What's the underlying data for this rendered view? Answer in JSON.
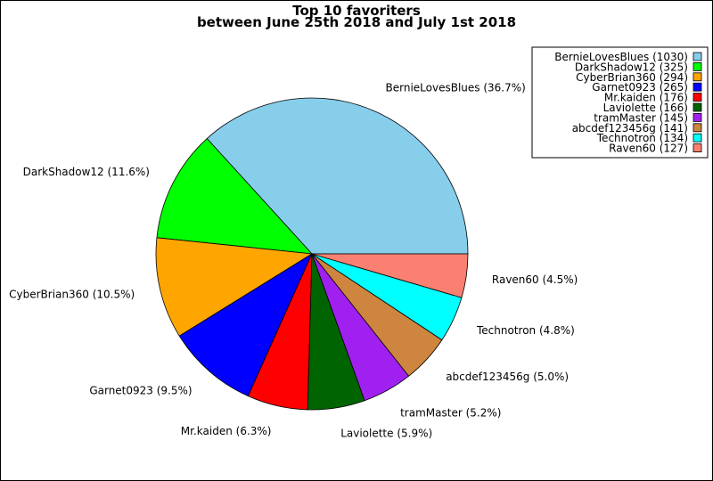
{
  "chart_data": {
    "type": "pie",
    "title": "Top 10 favoriters",
    "subtitle": "between June 25th 2018 and July 1st 2018",
    "legend_position": "top-right",
    "slices": [
      {
        "name": "BernieLovesBlues",
        "value": 1030,
        "percent": "36.7%",
        "color": "#87ceeb"
      },
      {
        "name": "DarkShadow12",
        "value": 325,
        "percent": "11.6%",
        "color": "#00ff00"
      },
      {
        "name": "CyberBrian360",
        "value": 294,
        "percent": "10.5%",
        "color": "#ffa500"
      },
      {
        "name": "Garnet0923",
        "value": 265,
        "percent": "9.5%",
        "color": "#0000ff"
      },
      {
        "name": "Mr.kaiden",
        "value": 176,
        "percent": "6.3%",
        "color": "#ff0000"
      },
      {
        "name": "Laviolette",
        "value": 166,
        "percent": "5.9%",
        "color": "#006400"
      },
      {
        "name": "tramMaster",
        "value": 145,
        "percent": "5.2%",
        "color": "#a020f0"
      },
      {
        "name": "abcdef123456g",
        "value": 141,
        "percent": "5.0%",
        "color": "#cd853f"
      },
      {
        "name": "Technotron",
        "value": 134,
        "percent": "4.8%",
        "color": "#00ffff"
      },
      {
        "name": "Raven60",
        "value": 127,
        "percent": "4.5%",
        "color": "#fa8072"
      }
    ]
  }
}
